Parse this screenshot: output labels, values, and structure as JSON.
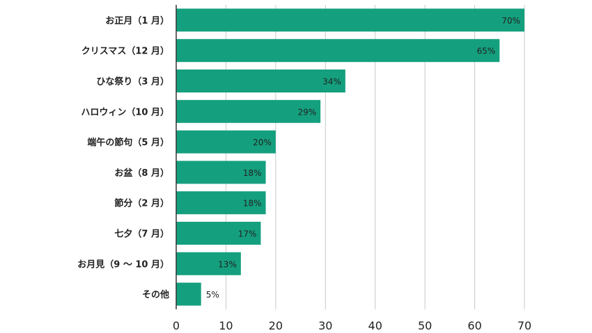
{
  "chart_data": {
    "type": "bar",
    "orientation": "horizontal",
    "categories": [
      "お正月（1 月）",
      "クリスマス（12 月）",
      "ひな祭り（3 月）",
      "ハロウィン（10 月）",
      "端午の節句（5 月）",
      "お盆（8 月）",
      "節分（2 月）",
      "七夕（7 月）",
      "お月見（9 ～ 10 月）",
      "その他"
    ],
    "values": [
      70,
      65,
      34,
      29,
      20,
      18,
      18,
      17,
      13,
      5
    ],
    "value_labels": [
      "70%",
      "65%",
      "34%",
      "29%",
      "20%",
      "18%",
      "18%",
      "17%",
      "13%",
      "5%"
    ],
    "xlim": [
      0,
      70
    ],
    "xticks": [
      0,
      10,
      20,
      30,
      40,
      50,
      60,
      70
    ],
    "grid": true,
    "bar_color": "#14a07e",
    "title": "",
    "xlabel": "",
    "ylabel": ""
  }
}
